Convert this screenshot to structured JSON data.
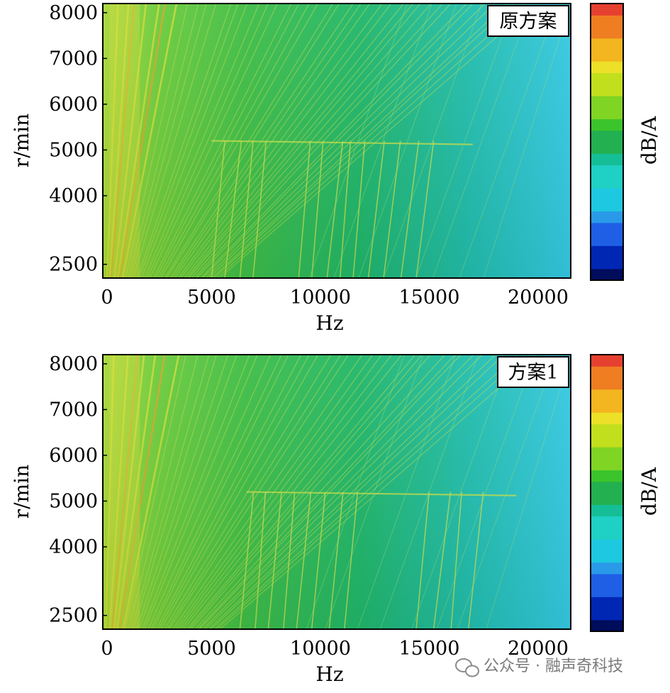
{
  "chart_data": [
    {
      "type": "heatmap",
      "plot_tag": "原方案",
      "xlabel": "Hz",
      "ylabel": "r/min",
      "xlim": [
        0,
        21500
      ],
      "ylim": [
        2200,
        8200
      ],
      "xticks": [
        "0",
        "5000",
        "10000",
        "15000",
        "20000"
      ],
      "yticks": [
        "8000",
        "7000",
        "6000",
        "5000",
        "4000",
        "2500"
      ],
      "colorbar_label": "dB/A",
      "resonance_band_rpm": 5200
    },
    {
      "type": "heatmap",
      "plot_tag": "方案1",
      "xlabel": "Hz",
      "ylabel": "r/min",
      "xlim": [
        0,
        21500
      ],
      "ylim": [
        2200,
        8200
      ],
      "xticks": [
        "0",
        "5000",
        "10000",
        "15000",
        "20000"
      ],
      "yticks": [
        "8000",
        "7000",
        "6000",
        "5000",
        "4000",
        "2500"
      ],
      "colorbar_label": "dB/A",
      "resonance_band_rpm": 5200
    }
  ],
  "colormap": [
    "#000c5c",
    "#0026b4",
    "#1f5fe6",
    "#2a9ae8",
    "#1ec8e0",
    "#1fd0c4",
    "#15be96",
    "#22b050",
    "#3cc42c",
    "#80d424",
    "#c2df1e",
    "#ece028",
    "#f3b620",
    "#ef7d22",
    "#e64030"
  ],
  "watermark": "公众号 · 融声奇科技"
}
